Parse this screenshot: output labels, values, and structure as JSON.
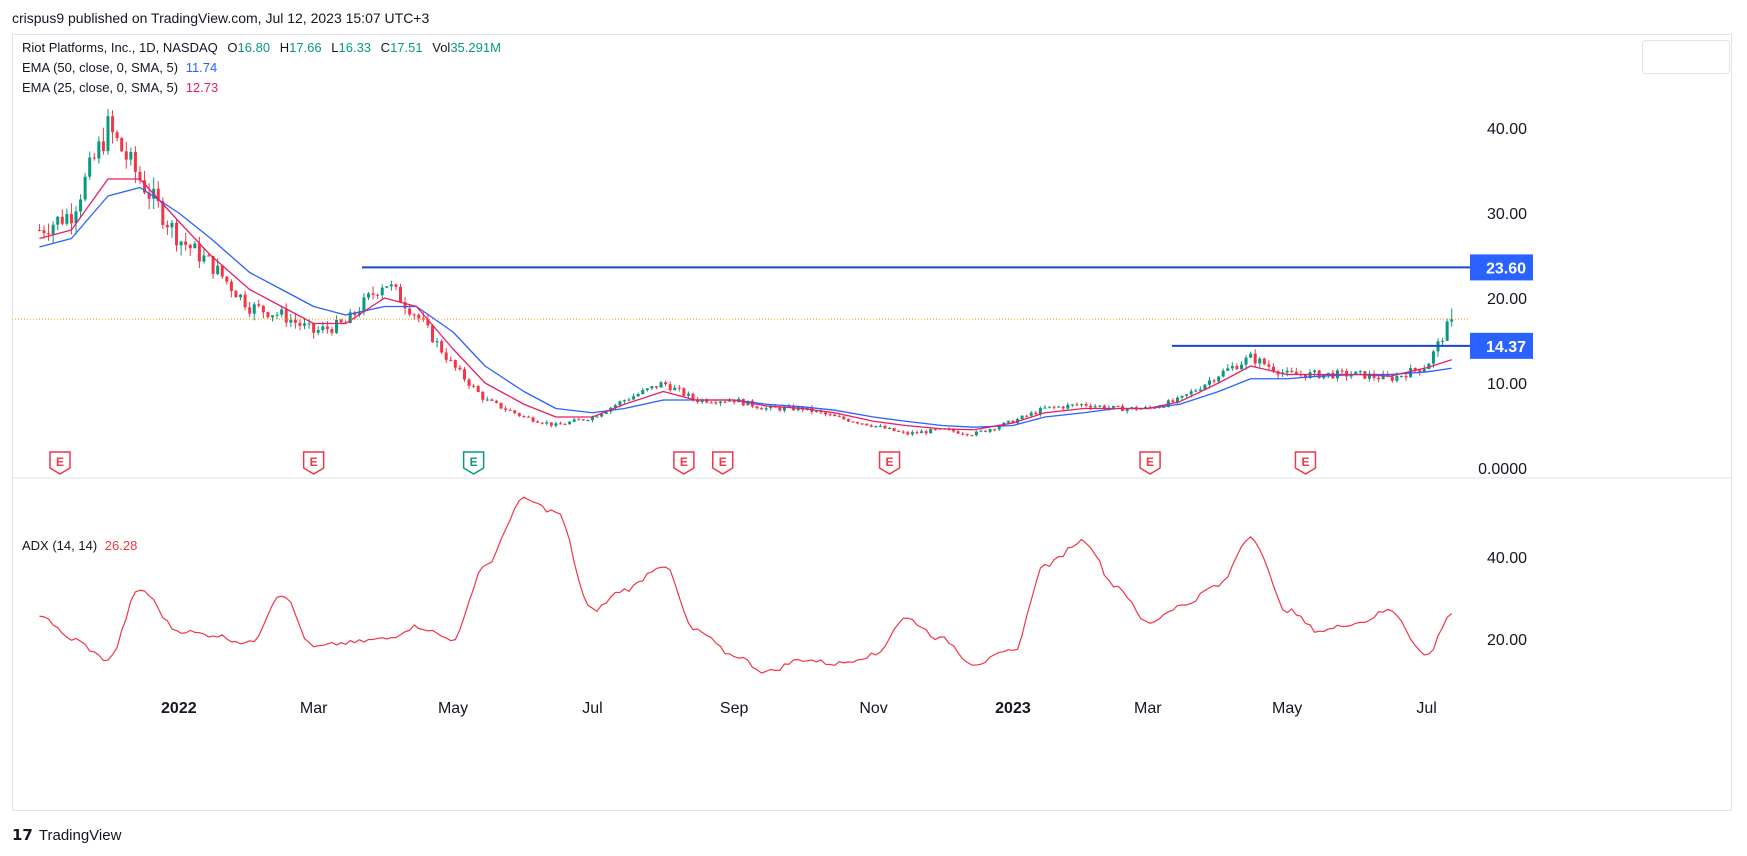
{
  "header": {
    "published_by": "crispus9 published on TradingView.com, Jul 12, 2023 15:07 UTC+3"
  },
  "legend": {
    "symbol": "Riot Platforms, Inc., 1D, NASDAQ",
    "o_label": "O",
    "o": "16.80",
    "h_label": "H",
    "h": "17.66",
    "l_label": "L",
    "l": "16.33",
    "c_label": "C",
    "c": "17.51",
    "vol_label": "Vol",
    "vol": "35.291M",
    "ema50_label": "EMA (50, close, 0, SMA, 5)",
    "ema50_value": "11.74",
    "ema25_label": "EMA (25, close, 0, SMA, 5)",
    "ema25_value": "12.73",
    "adx_label": "ADX (14, 14)",
    "adx_value": "26.28"
  },
  "footer": {
    "brand": "TradingView",
    "logo_glyph": "17"
  },
  "colors": {
    "up": "#089981",
    "down": "#f23645",
    "ema50": "#2962ff",
    "ema25": "#e91e63",
    "adx": "#f23645",
    "level": "#1848cc",
    "earnings_past": "#f23645",
    "earnings_future": "#089981"
  },
  "chart_data": [
    {
      "type": "candlestick",
      "title": "Riot Platforms, Inc., 1D, NASDAQ",
      "x_ticks": [
        "2022",
        "Mar",
        "May",
        "Jul",
        "Sep",
        "Nov",
        "2023",
        "Mar",
        "May",
        "Jul"
      ],
      "y_ticks": [
        "40.00",
        "30.00",
        "20.00",
        "10.00",
        "0.0000"
      ],
      "ylim": [
        0,
        50
      ],
      "grid": false,
      "series": [
        {
          "name": "Close",
          "x": [
            "2021-11-01",
            "2021-11-15",
            "2021-12-01",
            "2021-12-15",
            "2022-01-01",
            "2022-01-15",
            "2022-02-01",
            "2022-02-15",
            "2022-03-01",
            "2022-03-15",
            "2022-04-01",
            "2022-04-15",
            "2022-05-01",
            "2022-05-15",
            "2022-06-01",
            "2022-06-15",
            "2022-07-01",
            "2022-07-15",
            "2022-08-01",
            "2022-08-15",
            "2022-09-01",
            "2022-09-15",
            "2022-10-01",
            "2022-10-15",
            "2022-11-01",
            "2022-11-15",
            "2022-12-01",
            "2022-12-15",
            "2023-01-01",
            "2023-01-15",
            "2023-02-01",
            "2023-02-15",
            "2023-03-01",
            "2023-03-15",
            "2023-04-01",
            "2023-04-15",
            "2023-05-01",
            "2023-05-15",
            "2023-06-01",
            "2023-06-15",
            "2023-07-01",
            "2023-07-12"
          ],
          "values": [
            28,
            30,
            40,
            34,
            27,
            24,
            19,
            18,
            16,
            17,
            22,
            18,
            12,
            8,
            6,
            5,
            6,
            8,
            10,
            8,
            8,
            7,
            7,
            6,
            5,
            4,
            4.5,
            4,
            5.5,
            7,
            7.5,
            7,
            7,
            8,
            11,
            13,
            11,
            11,
            11,
            10.5,
            12,
            17.51
          ]
        },
        {
          "name": "EMA (50, close, 0, SMA, 5)",
          "values": [
            26,
            27,
            32,
            33,
            30,
            27,
            23,
            21,
            19,
            18,
            19,
            19,
            16,
            12,
            9,
            7,
            6.5,
            7,
            8,
            8,
            8,
            7.5,
            7.2,
            6.8,
            6,
            5.5,
            5,
            4.8,
            5,
            6,
            6.5,
            7,
            7,
            7.5,
            9,
            10.5,
            10.5,
            10.8,
            11,
            11,
            11.3,
            11.74
          ]
        },
        {
          "name": "EMA (25, close, 0, SMA, 5)",
          "values": [
            27,
            28,
            34,
            34,
            29,
            25,
            21,
            19,
            17,
            17,
            20,
            19,
            14,
            10,
            7.5,
            6,
            6,
            7.5,
            9,
            8,
            8,
            7.3,
            7,
            6.5,
            5.5,
            5,
            4.6,
            4.5,
            5.3,
            6.5,
            7,
            7,
            7,
            7.8,
            10,
            12,
            11,
            11,
            11,
            10.8,
            11.8,
            12.73
          ]
        }
      ],
      "annotations": [
        {
          "label": "23.60",
          "value": 23.6,
          "kind": "horizontal-level"
        },
        {
          "label": "14.37",
          "value": 14.37,
          "kind": "horizontal-level"
        },
        {
          "label": "",
          "value": 17.51,
          "kind": "last-price-line"
        }
      ],
      "earnings_markers": [
        {
          "label": "E",
          "date": "2021-11-10",
          "future": false
        },
        {
          "label": "E",
          "date": "2022-03-01",
          "future": false
        },
        {
          "label": "E",
          "date": "2022-05-10",
          "future": true
        },
        {
          "label": "E",
          "date": "2022-08-10",
          "future": false
        },
        {
          "label": "E",
          "date": "2022-08-27",
          "future": false
        },
        {
          "label": "E",
          "date": "2022-11-08",
          "future": false
        },
        {
          "label": "E",
          "date": "2023-03-02",
          "future": false
        },
        {
          "label": "E",
          "date": "2023-05-09",
          "future": false
        }
      ]
    },
    {
      "type": "line",
      "title": "ADX (14, 14)",
      "y_ticks": [
        "40.00",
        "20.00"
      ],
      "ylim": [
        0,
        60
      ],
      "series": [
        {
          "name": "ADX (14, 14)",
          "x": [
            "2021-11-01",
            "2021-11-15",
            "2021-12-01",
            "2021-12-15",
            "2022-01-01",
            "2022-01-15",
            "2022-02-01",
            "2022-02-15",
            "2022-03-01",
            "2022-03-15",
            "2022-04-01",
            "2022-04-15",
            "2022-05-01",
            "2022-05-15",
            "2022-06-01",
            "2022-06-15",
            "2022-07-01",
            "2022-07-15",
            "2022-08-01",
            "2022-08-15",
            "2022-09-01",
            "2022-09-15",
            "2022-10-01",
            "2022-10-15",
            "2022-11-01",
            "2022-11-15",
            "2022-12-01",
            "2022-12-15",
            "2023-01-01",
            "2023-01-15",
            "2023-02-01",
            "2023-02-15",
            "2023-03-01",
            "2023-03-15",
            "2023-04-01",
            "2023-04-15",
            "2023-05-01",
            "2023-05-15",
            "2023-06-01",
            "2023-06-15",
            "2023-07-01",
            "2023-07-12"
          ],
          "values": [
            26,
            20,
            15,
            32,
            22,
            21,
            19,
            31,
            18,
            19,
            20,
            23,
            20,
            38,
            54,
            51,
            27,
            32,
            38,
            22,
            16,
            12,
            15,
            14,
            16,
            25,
            20,
            14,
            17,
            38,
            44,
            33,
            24,
            28,
            33,
            45,
            27,
            22,
            24,
            27,
            16,
            26.28
          ]
        }
      ]
    }
  ]
}
